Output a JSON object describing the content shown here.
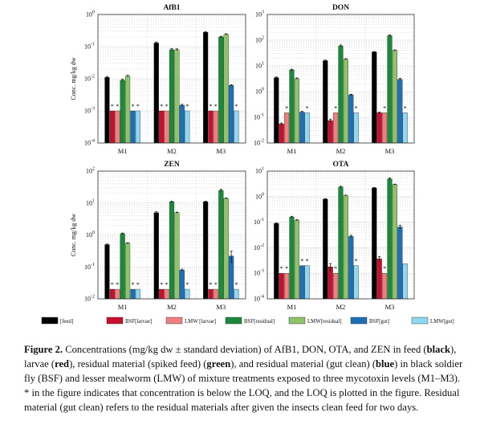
{
  "legend": [
    {
      "label": "[feed]",
      "color": "#000000"
    },
    {
      "label": "BSF[larvae]",
      "color": "#c8102e"
    },
    {
      "label": "LMW [larvae]",
      "color": "#f08080"
    },
    {
      "label": "BSF[residual]",
      "color": "#1a8a3a"
    },
    {
      "label": "LMW[residual]",
      "color": "#8fc46a"
    },
    {
      "label": "BSF[gut]",
      "color": "#1f6fb8"
    },
    {
      "label": "LMW[gut]",
      "color": "#8fd8f0"
    }
  ],
  "chart_data": [
    {
      "type": "bar",
      "title": "AfB1",
      "ylabel": "Conc. mg/kg dw",
      "log": true,
      "ylim": [
        0.0001,
        1
      ],
      "yticks_exp": [
        -4,
        -3,
        -2,
        -1,
        0
      ],
      "categories": [
        "M1",
        "M2",
        "M3"
      ],
      "series": [
        {
          "name": "[feed]",
          "values": [
            0.011,
            0.13,
            0.28
          ],
          "err": [
            0.0008,
            0.01,
            0.01
          ],
          "below_loq": [
            false,
            false,
            false
          ]
        },
        {
          "name": "BSF[larvae]",
          "values": [
            0.001,
            0.001,
            0.001
          ],
          "err": [
            0,
            0,
            0
          ],
          "below_loq": [
            true,
            true,
            true
          ]
        },
        {
          "name": "LMW [larvae]",
          "values": [
            0.001,
            0.001,
            0.001
          ],
          "err": [
            0,
            0,
            0
          ],
          "below_loq": [
            true,
            true,
            true
          ]
        },
        {
          "name": "BSF[residual]",
          "values": [
            0.009,
            0.08,
            0.2
          ],
          "err": [
            0.0006,
            0.006,
            0.01
          ],
          "below_loq": [
            false,
            false,
            false
          ]
        },
        {
          "name": "LMW[residual]",
          "values": [
            0.012,
            0.08,
            0.24
          ],
          "err": [
            0.0008,
            0.005,
            0.01
          ],
          "below_loq": [
            false,
            false,
            false
          ]
        },
        {
          "name": "BSF[gut]",
          "values": [
            0.001,
            0.0015,
            0.0062
          ],
          "err": [
            0,
            0.0001,
            0.0003
          ],
          "below_loq": [
            true,
            false,
            false
          ]
        },
        {
          "name": "LMW[gut]",
          "values": [
            0.001,
            0.001,
            0.001
          ],
          "err": [
            0,
            0,
            0
          ],
          "below_loq": [
            true,
            true,
            true
          ]
        }
      ]
    },
    {
      "type": "bar",
      "title": "DON",
      "ylabel": "",
      "log": true,
      "ylim": [
        0.01,
        1000
      ],
      "yticks_exp": [
        -2,
        -1,
        0,
        1,
        2,
        3
      ],
      "categories": [
        "M1",
        "M2",
        "M3"
      ],
      "series": [
        {
          "name": "[feed]",
          "values": [
            3.5,
            16,
            35
          ],
          "err": [
            0.2,
            0.8,
            1
          ],
          "below_loq": [
            false,
            false,
            false
          ]
        },
        {
          "name": "BSF[larvae]",
          "values": [
            0.055,
            0.075,
            0.15
          ],
          "err": [
            0.005,
            0.01,
            0.01
          ],
          "below_loq": [
            false,
            false,
            false
          ]
        },
        {
          "name": "LMW [larvae]",
          "values": [
            0.15,
            0.15,
            0.15
          ],
          "err": [
            0,
            0,
            0
          ],
          "below_loq": [
            true,
            true,
            true
          ]
        },
        {
          "name": "BSF[residual]",
          "values": [
            7,
            60,
            150
          ],
          "err": [
            0.4,
            5,
            8
          ],
          "below_loq": [
            false,
            false,
            false
          ]
        },
        {
          "name": "LMW[residual]",
          "values": [
            3.2,
            18,
            40
          ],
          "err": [
            0.2,
            1,
            2
          ],
          "below_loq": [
            false,
            false,
            false
          ]
        },
        {
          "name": "BSF[gut]",
          "values": [
            0.16,
            0.75,
            3.0
          ],
          "err": [
            0.01,
            0.04,
            0.3
          ],
          "below_loq": [
            false,
            false,
            false
          ]
        },
        {
          "name": "LMW[gut]",
          "values": [
            0.15,
            0.15,
            0.15
          ],
          "err": [
            0,
            0,
            0
          ],
          "below_loq": [
            true,
            true,
            true
          ]
        }
      ]
    },
    {
      "type": "bar",
      "title": "ZEN",
      "ylabel": "Conc. mg/kg dw",
      "log": true,
      "ylim": [
        0.01,
        100
      ],
      "yticks_exp": [
        -2,
        -1,
        0,
        1,
        2
      ],
      "categories": [
        "M1",
        "M2",
        "M3"
      ],
      "series": [
        {
          "name": "[feed]",
          "values": [
            0.5,
            5,
            11
          ],
          "err": [
            0.02,
            0.4,
            0.5
          ],
          "below_loq": [
            false,
            false,
            false
          ]
        },
        {
          "name": "BSF[larvae]",
          "values": [
            0.02,
            0.02,
            0.02
          ],
          "err": [
            0,
            0,
            0
          ],
          "below_loq": [
            true,
            true,
            true
          ]
        },
        {
          "name": "LMW [larvae]",
          "values": [
            0.02,
            0.02,
            0.02
          ],
          "err": [
            0,
            0,
            0
          ],
          "below_loq": [
            true,
            true,
            true
          ]
        },
        {
          "name": "BSF[residual]",
          "values": [
            1.1,
            11,
            25
          ],
          "err": [
            0.05,
            0.5,
            2
          ],
          "below_loq": [
            false,
            false,
            false
          ]
        },
        {
          "name": "LMW[residual]",
          "values": [
            0.55,
            5,
            14
          ],
          "err": [
            0.02,
            0.2,
            0.5
          ],
          "below_loq": [
            false,
            false,
            false
          ]
        },
        {
          "name": "BSF[gut]",
          "values": [
            0.02,
            0.08,
            0.22
          ],
          "err": [
            0,
            0.005,
            0.09
          ],
          "below_loq": [
            true,
            false,
            false
          ]
        },
        {
          "name": "LMW[gut]",
          "values": [
            0.02,
            0.02,
            0.02
          ],
          "err": [
            0,
            0,
            0
          ],
          "below_loq": [
            true,
            true,
            true
          ]
        }
      ]
    },
    {
      "type": "bar",
      "title": "OTA",
      "ylabel": "",
      "log": true,
      "ylim": [
        0.0001,
        10
      ],
      "yticks_exp": [
        -4,
        -3,
        -2,
        -1,
        0,
        1
      ],
      "categories": [
        "M1",
        "M2",
        "M3"
      ],
      "series": [
        {
          "name": "[feed]",
          "values": [
            0.09,
            0.8,
            2.2
          ],
          "err": [
            0.004,
            0.04,
            0.1
          ],
          "below_loq": [
            false,
            false,
            false
          ]
        },
        {
          "name": "BSF[larvae]",
          "values": [
            0.001,
            0.0018,
            0.0037
          ],
          "err": [
            0,
            0.0006,
            0.0008
          ],
          "below_loq": [
            true,
            false,
            false
          ]
        },
        {
          "name": "LMW [larvae]",
          "values": [
            0.001,
            0.001,
            0.001
          ],
          "err": [
            0,
            0,
            0
          ],
          "below_loq": [
            true,
            true,
            true
          ]
        },
        {
          "name": "BSF[residual]",
          "values": [
            0.16,
            2.4,
            5.0
          ],
          "err": [
            0.01,
            0.15,
            0.4
          ],
          "below_loq": [
            false,
            false,
            false
          ]
        },
        {
          "name": "LMW[residual]",
          "values": [
            0.12,
            1.1,
            3.0
          ],
          "err": [
            0.008,
            0.05,
            0.1
          ],
          "below_loq": [
            false,
            false,
            false
          ]
        },
        {
          "name": "BSF[gut]",
          "values": [
            0.002,
            0.028,
            0.065
          ],
          "err": [
            0,
            0.003,
            0.01
          ],
          "below_loq": [
            true,
            false,
            false
          ]
        },
        {
          "name": "LMW[gut]",
          "values": [
            0.002,
            0.002,
            0.0024
          ],
          "err": [
            0,
            0,
            0
          ],
          "below_loq": [
            true,
            true,
            false
          ]
        }
      ]
    }
  ],
  "caption": {
    "figure_label": "Figure 2.",
    "text_1": " Concentrations (mg/kg dw ± standard deviation) of AfB1, DON, OTA, and ZEN in feed (",
    "bold_1": "black",
    "text_2": "), larvae (",
    "bold_2": "red",
    "text_3": "), residual material (spiked feed) (",
    "bold_3": "green",
    "text_4": "), and residual material (gut clean) (",
    "bold_4": "blue",
    "text_5": ") in black soldier fly (BSF) and lesser mealworm (LMW) of mixture treatments exposed to three mycotoxin levels (M1–M3). * in the figure indicates that concentration is below the LOQ, and the LOQ is plotted in the figure. Residual material (gut clean) refers to the residual materials after given the insects clean feed for two days."
  }
}
